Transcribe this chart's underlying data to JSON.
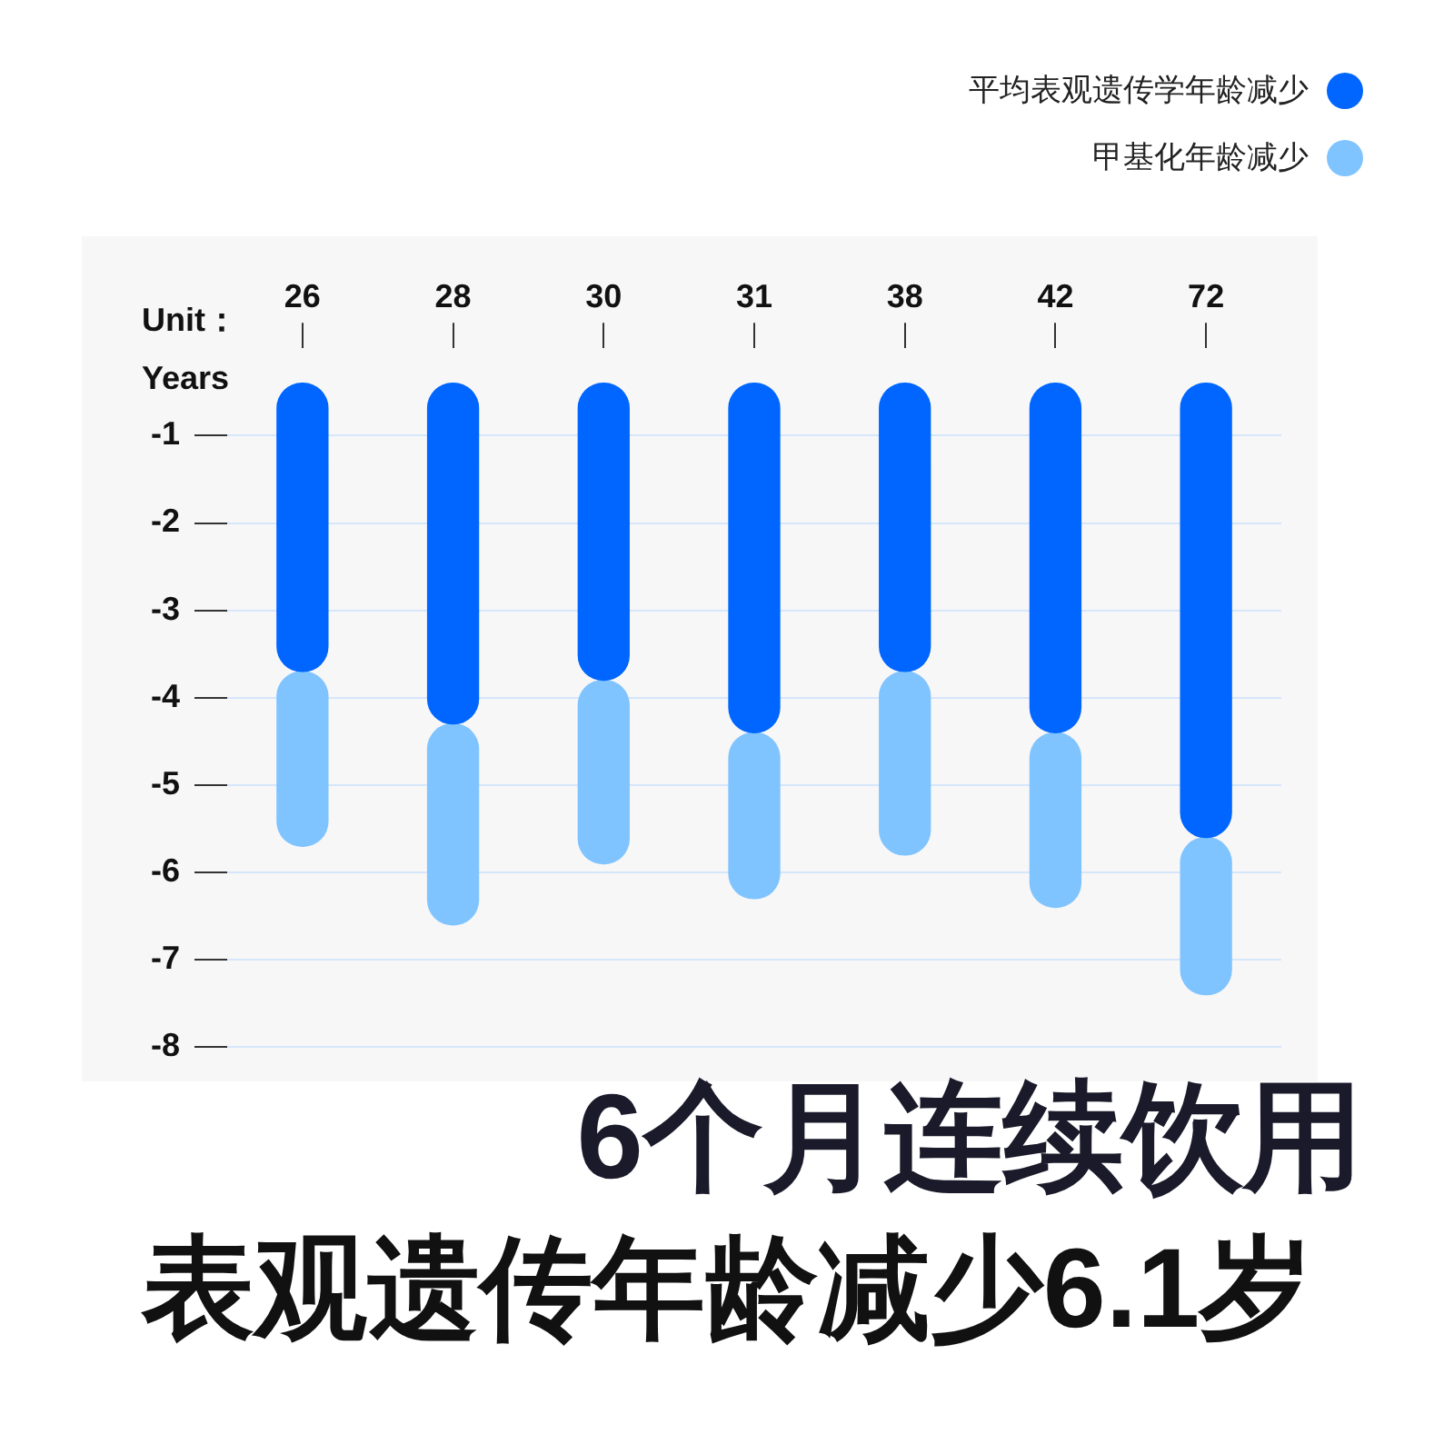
{
  "chart_data": {
    "type": "bar",
    "ylabel": "Unit：Years",
    "categories": [
      "26",
      "28",
      "30",
      "31",
      "38",
      "42",
      "72"
    ],
    "series": [
      {
        "name": "平均表观遗传学年龄减少",
        "color": "#0066ff",
        "base": [
          -0.4,
          -0.4,
          -0.4,
          -0.4,
          -0.4,
          -0.4,
          -0.4
        ],
        "values": [
          -3.3,
          -3.9,
          -3.4,
          -4.0,
          -3.3,
          -4.0,
          -5.2
        ]
      },
      {
        "name": "甲基化年龄减少",
        "color": "#80c4ff",
        "base": [
          -3.7,
          -4.3,
          -3.8,
          -4.4,
          -3.7,
          -4.4,
          -5.6
        ],
        "values": [
          -2.0,
          -2.3,
          -2.1,
          -1.9,
          -2.1,
          -2.0,
          -1.8
        ]
      }
    ],
    "ylim": [
      -8,
      0
    ],
    "yticks": [
      -1,
      -2,
      -3,
      -4,
      -5,
      -6,
      -7,
      -8
    ],
    "grid": "y",
    "legend": "top right",
    "annotations": [
      "6个月连续饮用",
      "表观遗传年龄减少6.1岁"
    ]
  }
}
